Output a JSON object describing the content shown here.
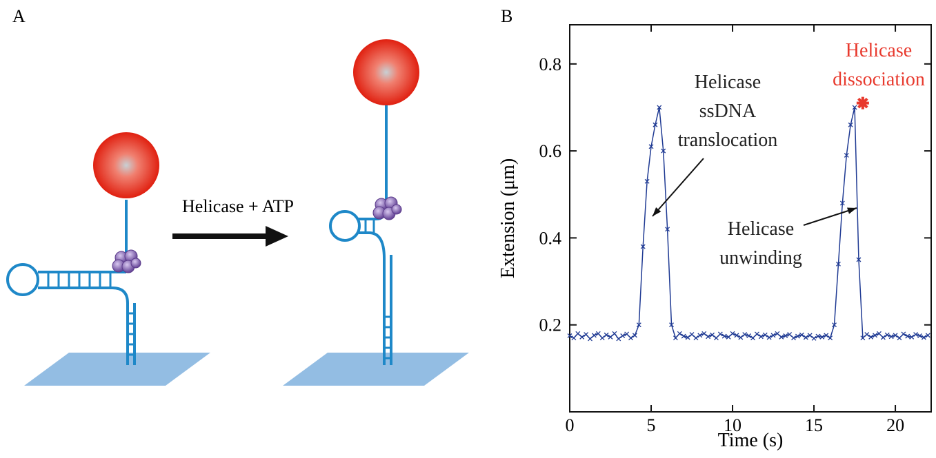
{
  "panel_a": {
    "label": "A",
    "arrow_label": "Helicase + ATP"
  },
  "panel_b": {
    "label": "B"
  },
  "chart_data": {
    "type": "line",
    "x_label": "Time (s)",
    "y_label": "Extension (μm)",
    "xlim": [
      0,
      22.2
    ],
    "ylim": [
      0,
      0.89
    ],
    "xticks": [
      0,
      5,
      10,
      15,
      20
    ],
    "yticks": [
      0.2,
      0.4,
      0.6,
      0.8
    ],
    "series": [
      {
        "color": "#1f3a93",
        "x": [
          0,
          0.25,
          0.5,
          0.75,
          1,
          1.25,
          1.5,
          1.75,
          2,
          2.25,
          2.5,
          2.75,
          3,
          3.25,
          3.5,
          3.75,
          4,
          4.25,
          4.5,
          4.75,
          5,
          5.25,
          5.5,
          5.75,
          6,
          6.25,
          6.5,
          6.75,
          7,
          7.25,
          7.5,
          7.75,
          8,
          8.25,
          8.5,
          8.75,
          9,
          9.25,
          9.5,
          9.75,
          10,
          10.25,
          10.5,
          10.75,
          11,
          11.25,
          11.5,
          11.75,
          12,
          12.25,
          12.5,
          12.75,
          13,
          13.25,
          13.5,
          13.75,
          14,
          14.25,
          14.5,
          14.75,
          15,
          15.25,
          15.5,
          15.75,
          16,
          16.25,
          16.5,
          16.75,
          17,
          17.25,
          17.5,
          17.75,
          18,
          18.25,
          18.5,
          18.75,
          19,
          19.25,
          19.5,
          19.75,
          20,
          20.25,
          20.5,
          20.75,
          21,
          21.25,
          21.5,
          21.75,
          22
        ],
        "values": [
          0.175,
          0.17,
          0.18,
          0.172,
          0.178,
          0.168,
          0.176,
          0.18,
          0.17,
          0.177,
          0.172,
          0.18,
          0.168,
          0.175,
          0.179,
          0.17,
          0.176,
          0.2,
          0.38,
          0.53,
          0.61,
          0.66,
          0.7,
          0.6,
          0.42,
          0.2,
          0.17,
          0.18,
          0.174,
          0.171,
          0.178,
          0.17,
          0.176,
          0.18,
          0.173,
          0.177,
          0.17,
          0.179,
          0.174,
          0.172,
          0.18,
          0.176,
          0.171,
          0.178,
          0.175,
          0.17,
          0.179,
          0.173,
          0.177,
          0.171,
          0.176,
          0.18,
          0.172,
          0.175,
          0.178,
          0.17,
          0.174,
          0.177,
          0.171,
          0.176,
          0.169,
          0.174,
          0.172,
          0.176,
          0.17,
          0.2,
          0.34,
          0.48,
          0.59,
          0.66,
          0.7,
          0.35,
          0.17,
          0.178,
          0.172,
          0.176,
          0.18,
          0.171,
          0.177,
          0.173,
          0.176,
          0.17,
          0.179,
          0.174,
          0.172,
          0.178,
          0.175,
          0.171,
          0.176
        ]
      }
    ],
    "event_marker": {
      "x": 18.0,
      "y": 0.71,
      "color": "#e8392d"
    },
    "annotations": [
      {
        "lines": [
          "Helicase",
          "ssDNA",
          "translocation"
        ],
        "color": "#222222"
      },
      {
        "lines": [
          "Helicase",
          "unwinding"
        ],
        "color": "#222222"
      },
      {
        "lines": [
          "Helicase",
          "dissociation"
        ],
        "color": "#e8392d"
      }
    ]
  }
}
